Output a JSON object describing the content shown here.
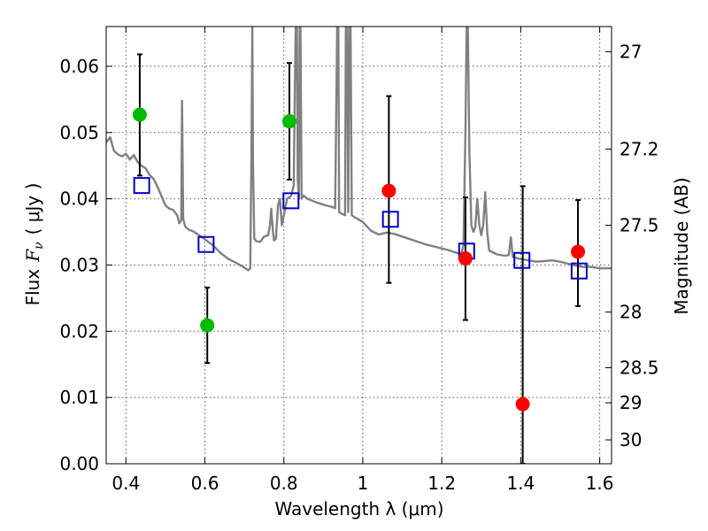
{
  "chart_data": {
    "type": "scatter",
    "xlabel": "Wavelength  λ (μm)",
    "ylabel_prefix": "Flux",
    "ylabel_symbol": "F",
    "ylabel_subscript": "ν",
    "ylabel_unit": "( μJy )",
    "y2label": "Magnitude (AB)",
    "xlim": [
      0.35,
      1.63
    ],
    "ylim": [
      0.0,
      0.066
    ],
    "grid": true,
    "x_ticks": [
      0.4,
      0.6,
      0.8,
      1.0,
      1.2,
      1.4,
      1.6
    ],
    "x_tick_labels": [
      "0.4",
      "0.6",
      "0.8",
      "1",
      "1.2",
      "1.4",
      "1.6"
    ],
    "y_ticks": [
      0.0,
      0.01,
      0.02,
      0.03,
      0.04,
      0.05,
      0.06
    ],
    "y_tick_labels": [
      "0.00",
      "0.01",
      "0.02",
      "0.03",
      "0.04",
      "0.05",
      "0.06"
    ],
    "y2_ticks": [
      {
        "label": "27",
        "flux": 0.0622
      },
      {
        "label": "27.2",
        "flux": 0.0475
      },
      {
        "label": "27.5",
        "flux": 0.036
      },
      {
        "label": "28",
        "flux": 0.0229
      },
      {
        "label": "28.5",
        "flux": 0.0145
      },
      {
        "label": "29",
        "flux": 0.0092
      },
      {
        "label": "30",
        "flux": 0.0036
      }
    ],
    "colors": {
      "green_points": "#00bb00",
      "red_points": "#ff0000",
      "model_squares": "#0000cc",
      "model_spectrum": "#808080",
      "error_bars": "#000000"
    },
    "series": [
      {
        "marker": "circle",
        "color": "#00bb00",
        "points": [
          {
            "x": 0.435,
            "y": 0.0527,
            "err": [
              0.0435,
              0.0618
            ]
          },
          {
            "x": 0.606,
            "y": 0.0209,
            "err": [
              0.0152,
              0.0266
            ]
          },
          {
            "x": 0.814,
            "y": 0.0517,
            "err": [
              0.0429,
              0.0605
            ]
          }
        ]
      },
      {
        "marker": "circle",
        "color": "#ff0000",
        "points": [
          {
            "x": 1.066,
            "y": 0.0412,
            "err": [
              0.0273,
              0.0555
            ]
          },
          {
            "x": 1.26,
            "y": 0.031,
            "err": [
              0.0217,
              0.0402
            ]
          },
          {
            "x": 1.405,
            "y": 0.009,
            "err": [
              0.0,
              0.0419
            ]
          },
          {
            "x": 1.545,
            "y": 0.032,
            "err": [
              0.0238,
              0.0398
            ]
          }
        ]
      },
      {
        "marker": "open-square",
        "color": "#0000cc",
        "points": [
          {
            "x": 0.44,
            "y": 0.042
          },
          {
            "x": 0.603,
            "y": 0.0331
          },
          {
            "x": 0.818,
            "y": 0.0397
          },
          {
            "x": 1.07,
            "y": 0.0369
          },
          {
            "x": 1.263,
            "y": 0.0321
          },
          {
            "x": 1.403,
            "y": 0.0307
          },
          {
            "x": 1.548,
            "y": 0.0291
          }
        ]
      },
      {
        "marker": "line",
        "color": "#808080",
        "points": [
          [
            0.35,
            0.0485
          ],
          [
            0.36,
            0.0493
          ],
          [
            0.365,
            0.0482
          ],
          [
            0.37,
            0.0472
          ],
          [
            0.38,
            0.0467
          ],
          [
            0.39,
            0.0464
          ],
          [
            0.4,
            0.0468
          ],
          [
            0.41,
            0.0459
          ],
          [
            0.42,
            0.0466
          ],
          [
            0.43,
            0.0455
          ],
          [
            0.44,
            0.045
          ],
          [
            0.45,
            0.0446
          ],
          [
            0.46,
            0.0436
          ],
          [
            0.47,
            0.043
          ],
          [
            0.48,
            0.0418
          ],
          [
            0.49,
            0.0404
          ],
          [
            0.5,
            0.039
          ],
          [
            0.51,
            0.0385
          ],
          [
            0.52,
            0.0383
          ],
          [
            0.53,
            0.0375
          ],
          [
            0.535,
            0.0363
          ],
          [
            0.54,
            0.0368
          ],
          [
            0.542,
            0.0548
          ],
          [
            0.545,
            0.037
          ],
          [
            0.55,
            0.0358
          ],
          [
            0.56,
            0.0353
          ],
          [
            0.57,
            0.0351
          ],
          [
            0.58,
            0.0347
          ],
          [
            0.59,
            0.0343
          ],
          [
            0.6,
            0.0339
          ],
          [
            0.62,
            0.033
          ],
          [
            0.64,
            0.0318
          ],
          [
            0.66,
            0.0309
          ],
          [
            0.68,
            0.0303
          ],
          [
            0.7,
            0.0296
          ],
          [
            0.71,
            0.0292
          ],
          [
            0.715,
            0.0295
          ],
          [
            0.718,
            0.048
          ],
          [
            0.72,
            0.066
          ],
          [
            0.722,
            0.045
          ],
          [
            0.725,
            0.034
          ],
          [
            0.73,
            0.0336
          ],
          [
            0.74,
            0.0335
          ],
          [
            0.75,
            0.0343
          ],
          [
            0.76,
            0.0345
          ],
          [
            0.765,
            0.036
          ],
          [
            0.768,
            0.0385
          ],
          [
            0.772,
            0.0352
          ],
          [
            0.775,
            0.0337
          ],
          [
            0.78,
            0.034
          ],
          [
            0.785,
            0.039
          ],
          [
            0.79,
            0.04
          ],
          [
            0.795,
            0.036
          ],
          [
            0.8,
            0.0375
          ],
          [
            0.808,
            0.04
          ],
          [
            0.818,
            0.0404
          ],
          [
            0.825,
            0.042
          ],
          [
            0.828,
            0.057
          ],
          [
            0.83,
            0.066
          ],
          [
            0.833,
            0.066
          ],
          [
            0.835,
            0.043
          ],
          [
            0.838,
            0.04
          ],
          [
            0.84,
            0.066
          ],
          [
            0.842,
            0.066
          ],
          [
            0.845,
            0.04
          ],
          [
            0.85,
            0.0405
          ],
          [
            0.86,
            0.04
          ],
          [
            0.88,
            0.0395
          ],
          [
            0.9,
            0.0391
          ],
          [
            0.92,
            0.0388
          ],
          [
            0.93,
            0.0386
          ],
          [
            0.935,
            0.066
          ],
          [
            0.938,
            0.066
          ],
          [
            0.94,
            0.038
          ],
          [
            0.945,
            0.0378
          ],
          [
            0.955,
            0.0375
          ],
          [
            0.957,
            0.066
          ],
          [
            0.96,
            0.066
          ],
          [
            0.963,
            0.038
          ],
          [
            0.966,
            0.066
          ],
          [
            0.969,
            0.066
          ],
          [
            0.972,
            0.0375
          ],
          [
            0.98,
            0.0372
          ],
          [
            1.0,
            0.0365
          ],
          [
            1.02,
            0.0352
          ],
          [
            1.04,
            0.0346
          ],
          [
            1.06,
            0.0349
          ],
          [
            1.08,
            0.0347
          ],
          [
            1.1,
            0.0343
          ],
          [
            1.12,
            0.0339
          ],
          [
            1.14,
            0.0335
          ],
          [
            1.16,
            0.0331
          ],
          [
            1.18,
            0.0328
          ],
          [
            1.2,
            0.0325
          ],
          [
            1.22,
            0.0322
          ],
          [
            1.24,
            0.0318
          ],
          [
            1.25,
            0.0318
          ],
          [
            1.255,
            0.033
          ],
          [
            1.26,
            0.05
          ],
          [
            1.263,
            0.066
          ],
          [
            1.266,
            0.066
          ],
          [
            1.27,
            0.047
          ],
          [
            1.275,
            0.036
          ],
          [
            1.28,
            0.035
          ],
          [
            1.285,
            0.0357
          ],
          [
            1.29,
            0.04
          ],
          [
            1.295,
            0.036
          ],
          [
            1.3,
            0.0345
          ],
          [
            1.305,
            0.036
          ],
          [
            1.31,
            0.041
          ],
          [
            1.315,
            0.035
          ],
          [
            1.32,
            0.0322
          ],
          [
            1.34,
            0.0316
          ],
          [
            1.36,
            0.0314
          ],
          [
            1.37,
            0.0315
          ],
          [
            1.375,
            0.0342
          ],
          [
            1.38,
            0.0312
          ],
          [
            1.4,
            0.0309
          ],
          [
            1.42,
            0.0307
          ],
          [
            1.44,
            0.0305
          ],
          [
            1.46,
            0.0306
          ],
          [
            1.48,
            0.0307
          ],
          [
            1.5,
            0.0305
          ],
          [
            1.52,
            0.0302
          ],
          [
            1.54,
            0.0299
          ],
          [
            1.56,
            0.0297
          ],
          [
            1.58,
            0.0297
          ],
          [
            1.6,
            0.0295
          ],
          [
            1.63,
            0.0295
          ]
        ]
      }
    ]
  }
}
